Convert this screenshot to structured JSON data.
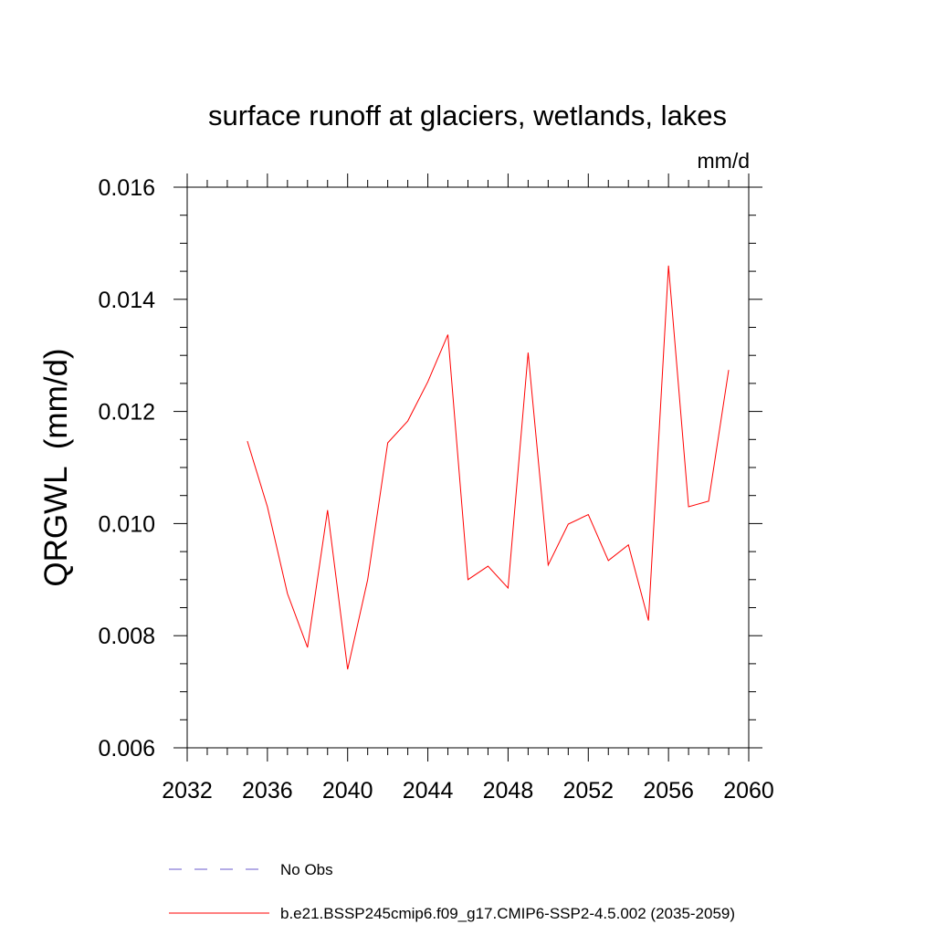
{
  "chart_data": {
    "type": "line",
    "title": "surface runoff at glaciers, wetlands, lakes",
    "units": "mm/d",
    "ylabel": "QRGWL  (mm/d)",
    "xlabel": "",
    "xlim": [
      2032,
      2060
    ],
    "ylim": [
      0.006,
      0.016
    ],
    "x_ticks": [
      2032,
      2036,
      2040,
      2044,
      2048,
      2052,
      2056,
      2060
    ],
    "x_tick_labels": [
      "2032",
      "2036",
      "2040",
      "2044",
      "2048",
      "2052",
      "2056",
      "2060"
    ],
    "y_ticks": [
      0.006,
      0.008,
      0.01,
      0.012,
      0.014,
      0.016
    ],
    "y_tick_labels": [
      "0.006",
      "0.008",
      "0.010",
      "0.012",
      "0.014",
      "0.016"
    ],
    "grid": false,
    "legend_position": "bottom",
    "series": [
      {
        "name": "No Obs",
        "color": "#6a5acd",
        "style": "dashed",
        "x": [],
        "values": []
      },
      {
        "name": "b.e21.BSSP245cmip6.f09_g17.CMIP6-SSP2-4.5.002 (2035-2059)",
        "color": "#ff0000",
        "style": "solid",
        "x": [
          2035,
          2036,
          2037,
          2038,
          2039,
          2040,
          2041,
          2042,
          2043,
          2044,
          2045,
          2046,
          2047,
          2048,
          2049,
          2050,
          2051,
          2052,
          2053,
          2054,
          2055,
          2056,
          2057,
          2058,
          2059
        ],
        "values": [
          0.01147,
          0.0103,
          0.00875,
          0.00779,
          0.01024,
          0.0074,
          0.009,
          0.01144,
          0.01183,
          0.01253,
          0.01337,
          0.009,
          0.00924,
          0.00885,
          0.01305,
          0.00926,
          0.00999,
          0.01016,
          0.00934,
          0.00962,
          0.00827,
          0.0146,
          0.0103,
          0.0104,
          0.01274
        ]
      }
    ]
  }
}
